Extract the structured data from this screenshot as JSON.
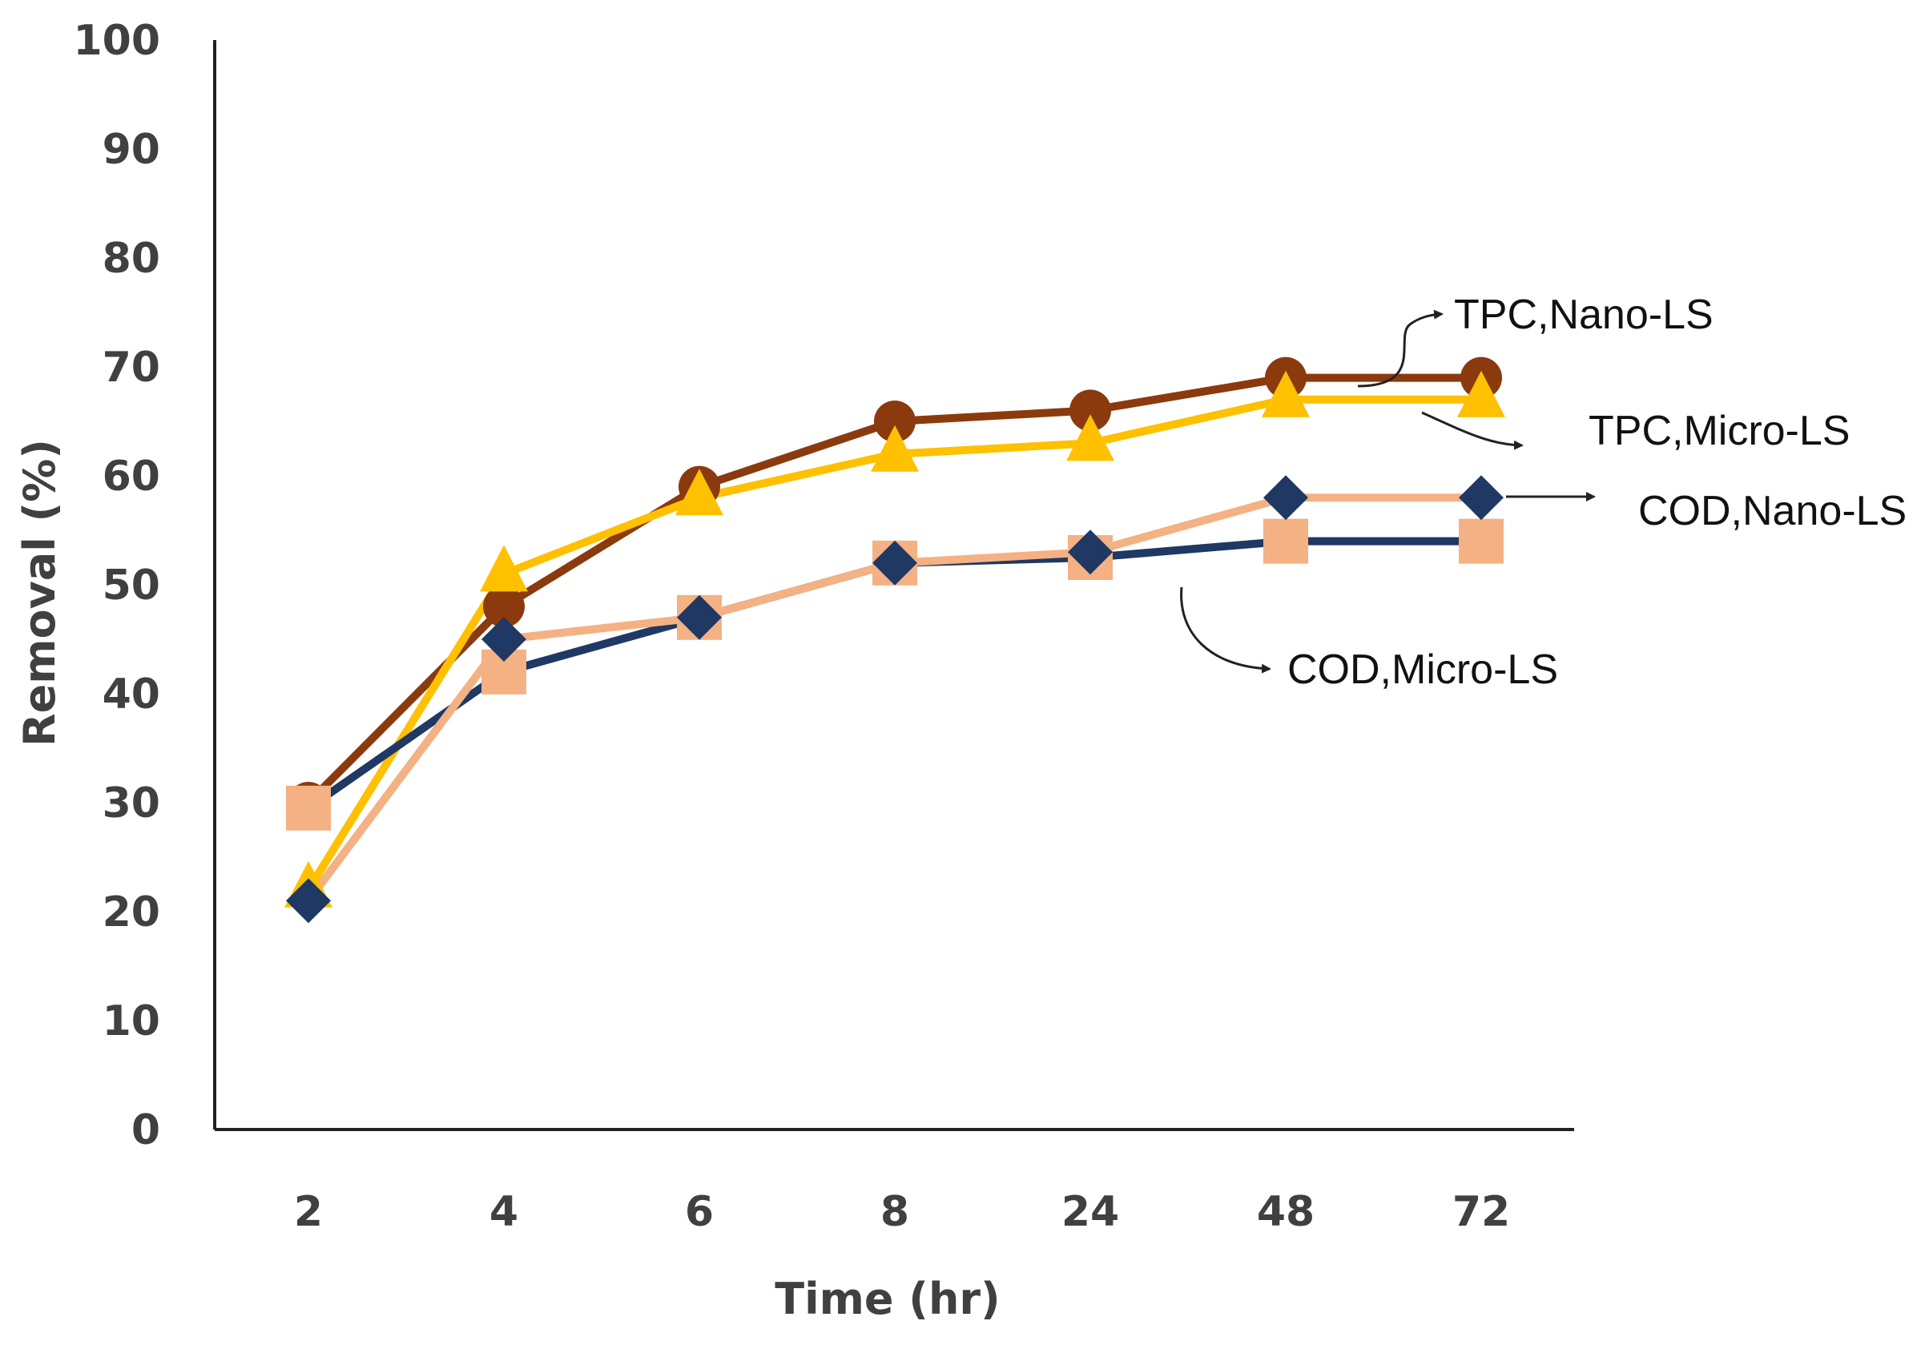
{
  "chart_data": {
    "type": "line",
    "title": "",
    "xlabel": "Time (hr)",
    "ylabel": "Removal (%)",
    "categories": [
      "2",
      "4",
      "6",
      "8",
      "24",
      "48",
      "72"
    ],
    "ylim": [
      0,
      100
    ],
    "yticks": [
      0,
      10,
      20,
      30,
      40,
      50,
      60,
      70,
      80,
      90,
      100
    ],
    "grid": false,
    "legend": "none",
    "series": [
      {
        "name": "TPC,Nano-LS",
        "marker": "circle",
        "line_color": "#8B3A0E",
        "marker_color": "#8B3A0E",
        "values": [
          30,
          48,
          59,
          65,
          66,
          69,
          69
        ]
      },
      {
        "name": "TPC,Micro-LS",
        "marker": "triangle",
        "line_color": "#FFC000",
        "marker_color": "#FFC000",
        "values": [
          22,
          51,
          58,
          62,
          63,
          67,
          67
        ]
      },
      {
        "name": "COD,Micro-LS",
        "marker": "square",
        "line_color": "#1F3864",
        "marker_color": "#F4B183",
        "values": [
          29.5,
          42,
          47,
          52,
          52.5,
          54,
          54
        ]
      },
      {
        "name": "COD,Nano-LS",
        "marker": "diamond",
        "line_color": "#F4B183",
        "marker_color": "#1F3864",
        "values": [
          21,
          45,
          47,
          52,
          53,
          58,
          58
        ]
      }
    ],
    "annotations": [
      {
        "text": "TPC,Nano-LS",
        "series": "TPC,Nano-LS"
      },
      {
        "text": "TPC,Micro-LS",
        "series": "TPC,Micro-LS"
      },
      {
        "text": "COD,Nano-LS",
        "series": "COD,Nano-LS"
      },
      {
        "text": "COD,Micro-LS",
        "series": "COD,Micro-LS"
      }
    ]
  }
}
